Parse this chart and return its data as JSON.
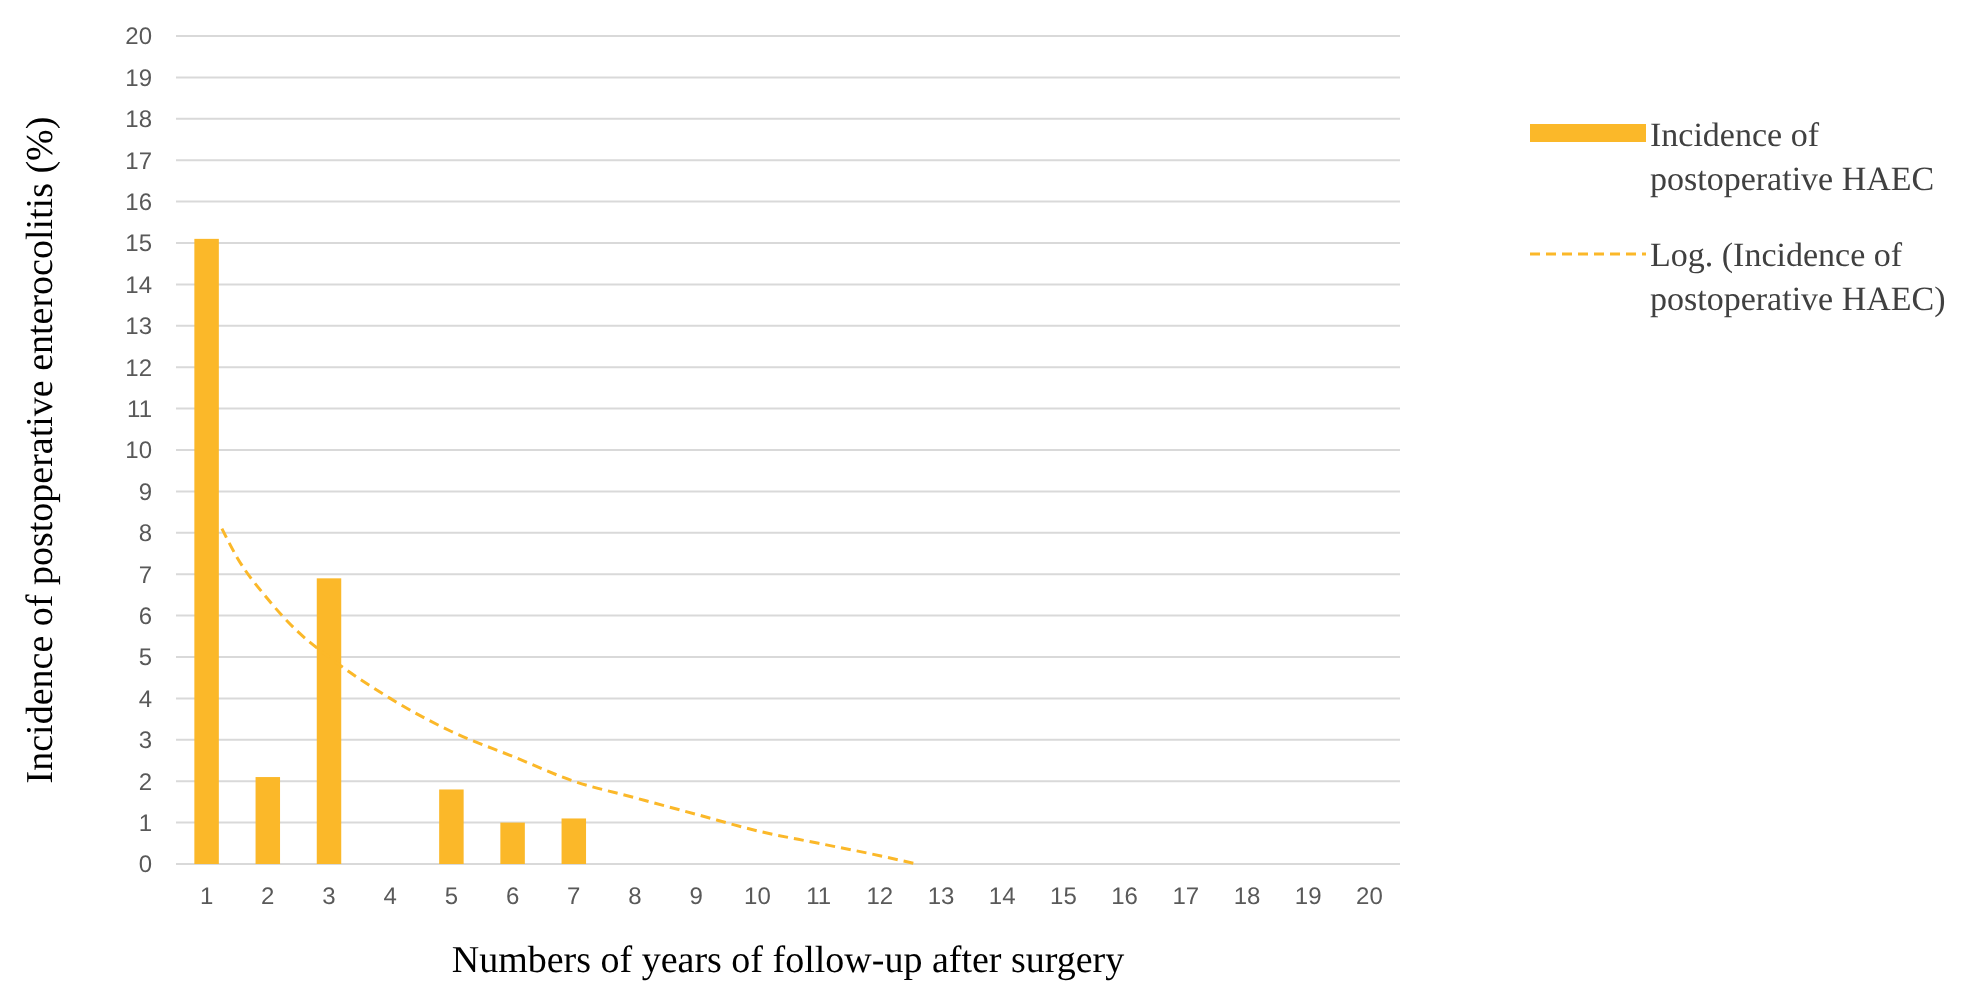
{
  "chart_data": {
    "type": "bar",
    "xlabel": "Numbers of years of follow-up after surgery",
    "ylabel": "Incidence of postoperative enterocolitis (%)",
    "xlim": [
      0.5,
      20.5
    ],
    "xticks": [
      1,
      2,
      3,
      4,
      5,
      6,
      7,
      8,
      9,
      10,
      11,
      12,
      13,
      14,
      15,
      16,
      17,
      18,
      19,
      20
    ],
    "ylim": [
      0,
      20
    ],
    "yticks": [
      0,
      1,
      2,
      3,
      4,
      5,
      6,
      7,
      8,
      9,
      10,
      11,
      12,
      13,
      14,
      15,
      16,
      17,
      18,
      19,
      20
    ],
    "grid": "y",
    "legend": "right",
    "series": [
      {
        "name": "Incidence of postoperative HAEC",
        "color": "#fbb829",
        "x": [
          1,
          2,
          3,
          5,
          6,
          7
        ],
        "values": [
          15.1,
          2.1,
          6.9,
          1.8,
          1.0,
          1.1
        ]
      },
      {
        "name": "Log. (Incidence of postoperative HAEC)",
        "type": "line",
        "line_style": "dashed",
        "marker": "none",
        "color": "#fbb829",
        "x": [
          1.25,
          1.5,
          2,
          2.5,
          3,
          4,
          5,
          6,
          7,
          8,
          9,
          10,
          11,
          12,
          12.6
        ],
        "values": [
          8.1,
          7.4,
          6.4,
          5.6,
          5.0,
          4.0,
          3.2,
          2.6,
          2.0,
          1.6,
          1.2,
          0.8,
          0.5,
          0.2,
          0
        ]
      }
    ]
  }
}
